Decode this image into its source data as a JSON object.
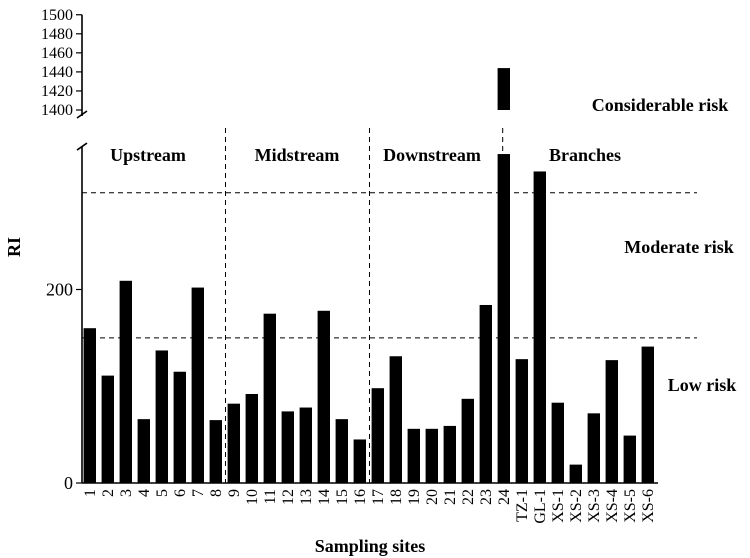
{
  "chart_data": {
    "type": "bar",
    "xlabel": "Sampling sites",
    "ylabel": "RI",
    "y_axis": {
      "break": true,
      "lower_range": [
        0,
        340
      ],
      "lower_ticks": [
        0,
        200
      ],
      "upper_range": [
        1400,
        1500
      ],
      "upper_ticks": [
        1400,
        1420,
        1440,
        1460,
        1480,
        1500
      ]
    },
    "categories": [
      "1",
      "2",
      "3",
      "4",
      "5",
      "6",
      "7",
      "8",
      "9",
      "10",
      "11",
      "12",
      "13",
      "14",
      "15",
      "16",
      "17",
      "18",
      "19",
      "20",
      "21",
      "22",
      "23",
      "24",
      "TZ-1",
      "GL-1",
      "XS-1",
      "XS-2",
      "XS-3",
      "XS-4",
      "XS-5",
      "XS-6"
    ],
    "values": [
      160,
      111,
      209,
      66,
      137,
      115,
      202,
      65,
      82,
      92,
      175,
      74,
      78,
      178,
      66,
      45,
      98,
      131,
      56,
      56,
      59,
      87,
      184,
      1444,
      128,
      322,
      83,
      19,
      72,
      127,
      49,
      141
    ],
    "threshold_lines": [
      150,
      300
    ],
    "regions": [
      "Upstream",
      "Midstream",
      "Downstream",
      "Branches"
    ],
    "risk_levels": [
      "Low risk",
      "Moderate risk",
      "Considerable risk"
    ],
    "grid": false
  }
}
